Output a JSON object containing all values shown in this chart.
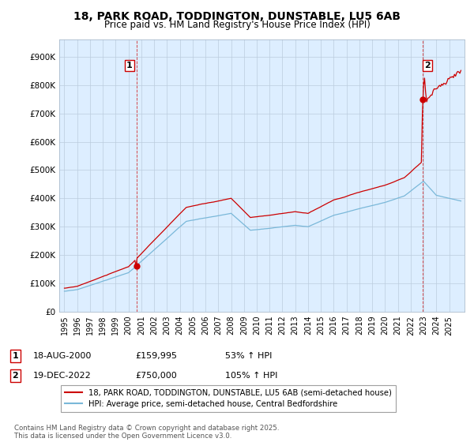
{
  "title_line1": "18, PARK ROAD, TODDINGTON, DUNSTABLE, LU5 6AB",
  "title_line2": "Price paid vs. HM Land Registry's House Price Index (HPI)",
  "ylim": [
    0,
    960000
  ],
  "yticks": [
    0,
    100000,
    200000,
    300000,
    400000,
    500000,
    600000,
    700000,
    800000,
    900000
  ],
  "ytick_labels": [
    "£0",
    "£100K",
    "£200K",
    "£300K",
    "£400K",
    "£500K",
    "£600K",
    "£700K",
    "£800K",
    "£900K"
  ],
  "sale1_year": 2000.622,
  "sale1_price": 159995,
  "sale2_year": 2022.958,
  "sale2_price": 750000,
  "hpi_line_color": "#7ab8d9",
  "price_line_color": "#cc0000",
  "dashed_line_color": "#cc0000",
  "plot_bg_color": "#ddeeff",
  "legend_entry1": "18, PARK ROAD, TODDINGTON, DUNSTABLE, LU5 6AB (semi-detached house)",
  "legend_entry2": "HPI: Average price, semi-detached house, Central Bedfordshire",
  "annotation1_date": "18-AUG-2000",
  "annotation1_price": "£159,995",
  "annotation1_hpi": "53% ↑ HPI",
  "annotation2_date": "19-DEC-2022",
  "annotation2_price": "£750,000",
  "annotation2_hpi": "105% ↑ HPI",
  "footer": "Contains HM Land Registry data © Crown copyright and database right 2025.\nThis data is licensed under the Open Government Licence v3.0.",
  "background_color": "#ffffff",
  "grid_color": "#bbccdd"
}
